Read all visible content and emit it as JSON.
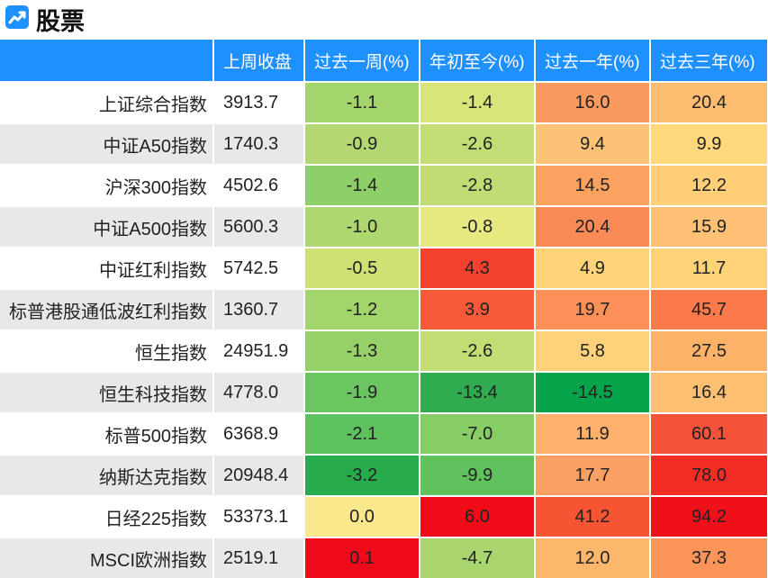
{
  "header": {
    "title": "股票",
    "icon": "chart-trend-icon"
  },
  "columns": [
    "",
    "上周收盘",
    "过去一周(%)",
    "年初至今(%)",
    "过去一年(%)",
    "过去三年(%)"
  ],
  "rows": [
    {
      "name": "上证综合指数",
      "close": "3913.7",
      "values": [
        "-1.1",
        "-1.4",
        "16.0",
        "20.4"
      ],
      "colors": [
        "#a4d56c",
        "#d9e57a",
        "#fb9a5e",
        "#fdbd70"
      ]
    },
    {
      "name": "中证A50指数",
      "close": "1740.3",
      "values": [
        "-0.9",
        "-2.6",
        "9.4",
        "9.9"
      ],
      "colors": [
        "#b3d872",
        "#c3dd75",
        "#fdc276",
        "#fed87a"
      ]
    },
    {
      "name": "沪深300指数",
      "close": "4502.6",
      "values": [
        "-1.4",
        "-2.8",
        "14.5",
        "12.2"
      ],
      "colors": [
        "#8ecf67",
        "#c1dc74",
        "#fca261",
        "#fecf76"
      ]
    },
    {
      "name": "中证A500指数",
      "close": "5600.3",
      "values": [
        "-1.0",
        "-0.8",
        "20.4",
        "15.9"
      ],
      "colors": [
        "#afd770",
        "#e5e980",
        "#fa8a56",
        "#fdc074"
      ]
    },
    {
      "name": "中证红利指数",
      "close": "5742.5",
      "values": [
        "-0.5",
        "4.3",
        "4.9",
        "11.7"
      ],
      "colors": [
        "#cfe074",
        "#f4412e",
        "#fed479",
        "#fed277"
      ]
    },
    {
      "name": "标普港股通低波红利指数",
      "close": "1360.7",
      "values": [
        "-1.2",
        "3.9",
        "19.7",
        "45.7"
      ],
      "colors": [
        "#a3d56d",
        "#f65a38",
        "#fb9059",
        "#fa7a4c"
      ]
    },
    {
      "name": "恒生指数",
      "close": "24951.9",
      "values": [
        "-1.3",
        "-2.6",
        "5.8",
        "27.5"
      ],
      "colors": [
        "#96d069",
        "#c3dd75",
        "#fed27a",
        "#fcb267"
      ]
    },
    {
      "name": "恒生科技指数",
      "close": "4778.0",
      "values": [
        "-1.9",
        "-13.4",
        "-14.5",
        "16.4"
      ],
      "colors": [
        "#6bc560",
        "#30ab50",
        "#05a44b",
        "#fdc073"
      ]
    },
    {
      "name": "标普500指数",
      "close": "6368.9",
      "values": [
        "-2.1",
        "-7.0",
        "11.9",
        "60.1"
      ],
      "colors": [
        "#5dc15d",
        "#87cd66",
        "#fdb16b",
        "#f5523a"
      ]
    },
    {
      "name": "纳斯达克指数",
      "close": "20948.4",
      "values": [
        "-3.2",
        "-9.9",
        "17.7",
        "78.0"
      ],
      "colors": [
        "#26ac4c",
        "#60c25d",
        "#fba065",
        "#f42c26"
      ]
    },
    {
      "name": "日经225指数",
      "close": "53373.1",
      "values": [
        "0.0",
        "6.0",
        "41.2",
        "94.2"
      ],
      "colors": [
        "#fbe88c",
        "#f00b18",
        "#f65433",
        "#ef101a"
      ]
    },
    {
      "name": "MSCI欧洲指数",
      "close": "2519.1",
      "values": [
        "0.1",
        "-4.7",
        "12.0",
        "37.3"
      ],
      "colors": [
        "#ee0a18",
        "#a8d56d",
        "#fdb76c",
        "#fb9459"
      ]
    }
  ]
}
